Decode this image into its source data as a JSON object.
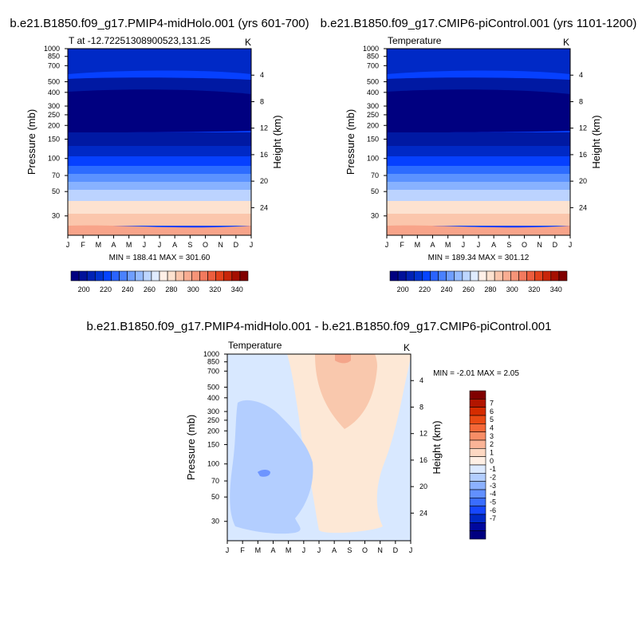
{
  "chart_data": [
    {
      "type": "heatmap",
      "name": "panel-midholo",
      "title": "b.e21.B1850.f09_g17.PMIP4-midHolo.001 (yrs 601-700)",
      "subtitle_left": "T at -12.72251308900523,131.25",
      "subtitle_right": "K",
      "xlabel": "",
      "ylabel": "Pressure (mb)",
      "ylabel_right": "Height (km)",
      "x": [
        "J",
        "F",
        "M",
        "A",
        "M",
        "J",
        "J",
        "A",
        "S",
        "O",
        "N",
        "D",
        "J"
      ],
      "y_pressure_ticks": [
        30,
        50,
        70,
        100,
        150,
        200,
        250,
        300,
        400,
        500,
        700,
        850,
        1000
      ],
      "y_height_ticks": [
        4,
        8,
        12,
        16,
        20,
        24
      ],
      "ylim_pressure": [
        1000,
        20
      ],
      "min_max_label": "MIN = 188.41 MAX = 301.60",
      "contour_levels": [
        200,
        210,
        220,
        230,
        240,
        250,
        260,
        270,
        280,
        290,
        300
      ],
      "layer_colors": [
        "#000080",
        "#0019a3",
        "#0029c6",
        "#0640ff",
        "#2d6cff",
        "#5b92ff",
        "#88b2ff",
        "#bcd3ff",
        "#fde2d0",
        "#fbc6ac",
        "#f8a48a",
        "#f48463"
      ]
    },
    {
      "type": "heatmap",
      "name": "panel-picontrol",
      "title": "b.e21.B1850.f09_g17.CMIP6-piControl.001 (yrs 1101-1200)",
      "subtitle_left": "Temperature",
      "subtitle_right": "K",
      "xlabel": "",
      "ylabel": "Pressure (mb)",
      "ylabel_right": "Height (km)",
      "x": [
        "J",
        "F",
        "M",
        "A",
        "M",
        "J",
        "J",
        "A",
        "S",
        "O",
        "N",
        "D",
        "J"
      ],
      "y_pressure_ticks": [
        30,
        50,
        70,
        100,
        150,
        200,
        250,
        300,
        400,
        500,
        700,
        850,
        1000
      ],
      "y_height_ticks": [
        4,
        8,
        12,
        16,
        20,
        24
      ],
      "ylim_pressure": [
        1000,
        20
      ],
      "min_max_label": "MIN = 189.34 MAX = 301.12",
      "contour_levels": [
        200,
        210,
        220,
        230,
        240,
        250,
        260,
        270,
        280,
        290,
        300
      ]
    },
    {
      "type": "heatmap",
      "name": "panel-difference",
      "title": "b.e21.B1850.f09_g17.PMIP4-midHolo.001 - b.e21.B1850.f09_g17.CMIP6-piControl.001",
      "subtitle_left": "Temperature",
      "subtitle_right": "K",
      "xlabel": "",
      "ylabel": "Pressure (mb)",
      "ylabel_right": "Height (km)",
      "x": [
        "J",
        "F",
        "M",
        "A",
        "M",
        "J",
        "J",
        "A",
        "S",
        "O",
        "N",
        "D",
        "J"
      ],
      "y_pressure_ticks": [
        30,
        50,
        70,
        100,
        150,
        200,
        250,
        300,
        400,
        500,
        700,
        850,
        1000
      ],
      "y_height_ticks": [
        4,
        8,
        12,
        16,
        20,
        24
      ],
      "min_max_label": "MIN =  -2.01 MAX =   2.05",
      "contour_levels": [
        -1,
        0,
        1,
        2
      ]
    }
  ],
  "colorbar_top": {
    "labels": [
      "200",
      "220",
      "240",
      "260",
      "280",
      "300",
      "320",
      "340"
    ],
    "colors": [
      "#000080",
      "#00119a",
      "#0022b5",
      "#0033d0",
      "#0644ff",
      "#2a63ff",
      "#4a81ff",
      "#6f9eff",
      "#95bbff",
      "#bdd6ff",
      "#e0ecff",
      "#fff0e8",
      "#fde2d0",
      "#fbc6ac",
      "#f9ad92",
      "#f69478",
      "#f27a5e",
      "#ec5e3e",
      "#e2421c",
      "#c8260a",
      "#a50f00",
      "#800000"
    ]
  },
  "colorbar_diff": {
    "labels": [
      "7",
      "6",
      "5",
      "4",
      "3",
      "2",
      "1",
      "0",
      "-1",
      "-2",
      "-3",
      "-4",
      "-5",
      "-6",
      "-7"
    ],
    "colors": [
      "#800000",
      "#b21500",
      "#d52c00",
      "#ea4a14",
      "#f56838",
      "#f88d66",
      "#fab497",
      "#fdd8c2",
      "#ffefe4",
      "#dce9ff",
      "#b3ceff",
      "#8cb1ff",
      "#6290ff",
      "#3a6dff",
      "#1647ff",
      "#0029c6",
      "#00089e",
      "#000080"
    ]
  },
  "diff_colors": {
    "neg2": "#b3ceff",
    "neg1": "#d8e8ff",
    "pos1": "#fde8d6",
    "pos2": "#f9c8ad",
    "dark_neg": "#6e95ff",
    "dark_pos": "#f4a58a"
  }
}
